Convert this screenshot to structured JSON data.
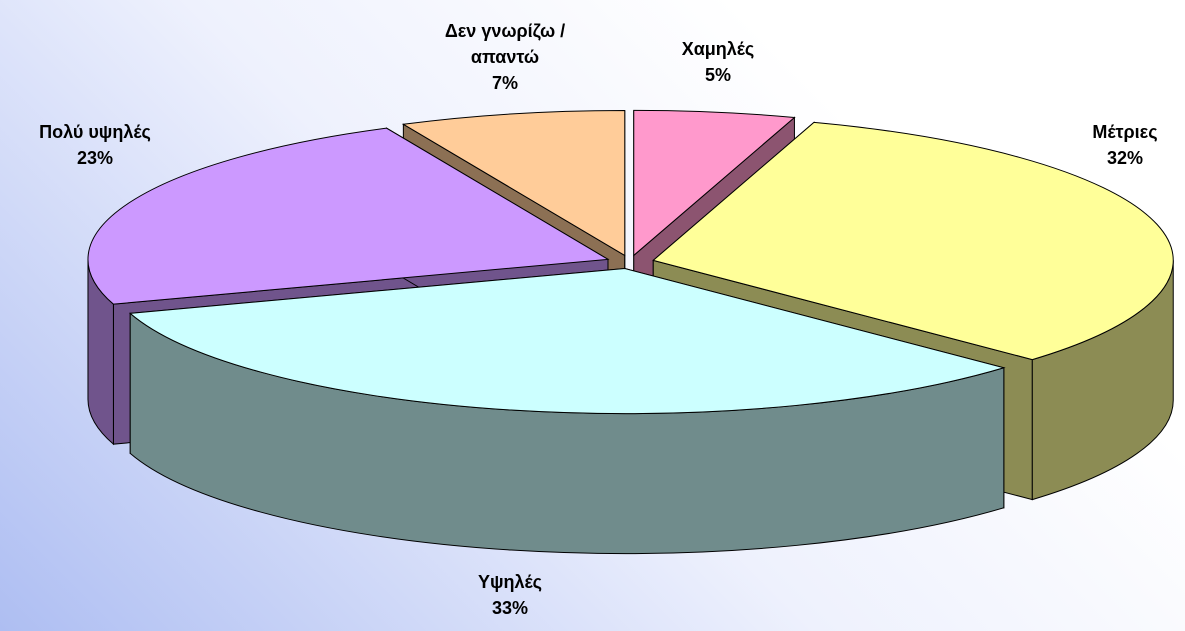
{
  "chart_data": {
    "type": "pie3d",
    "categories": [
      "Χαμηλές",
      "Μέτριες",
      "Υψηλές",
      "Πολύ υψηλές",
      "Δεν γνωρίζω / απαντώ"
    ],
    "values": [
      5,
      32,
      33,
      23,
      7
    ],
    "value_labels": [
      "5%",
      "32%",
      "33%",
      "23%",
      "7%"
    ],
    "colors": [
      "#ff99cc",
      "#ffff99",
      "#ccffff",
      "#cc99ff",
      "#ffcc99"
    ]
  }
}
